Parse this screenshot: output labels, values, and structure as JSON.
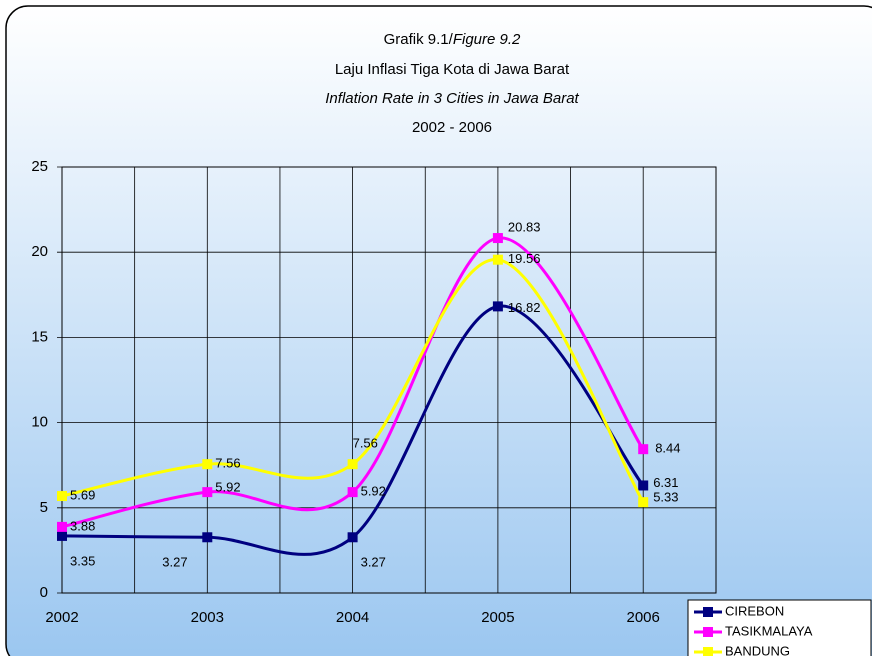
{
  "chart_data": {
    "type": "line",
    "title": [
      "Grafik 9.1/",
      "Figure 9.2"
    ],
    "subtitle": [
      "Laju Inflasi Tiga Kota di Jawa Barat",
      "Inflation Rate in 3 Cities in Jawa Barat",
      "2002 - 2006"
    ],
    "categories": [
      "2002",
      "2003",
      "2004",
      "2005",
      "2006"
    ],
    "series": [
      {
        "name": "CIREBON",
        "color": "#000080",
        "values": [
          3.35,
          3.27,
          3.27,
          16.82,
          6.31
        ]
      },
      {
        "name": "TASIKMALAYA",
        "color": "#ff00ff",
        "values": [
          3.88,
          5.92,
          5.92,
          20.83,
          8.44
        ]
      },
      {
        "name": "BANDUNG",
        "color": "#ffff00",
        "values": [
          5.69,
          7.56,
          7.56,
          19.56,
          5.33
        ]
      }
    ],
    "ylim": [
      0,
      25
    ],
    "yticks": [
      0,
      5,
      10,
      15,
      20,
      25
    ],
    "grid": true,
    "legend": "bottom-right"
  }
}
